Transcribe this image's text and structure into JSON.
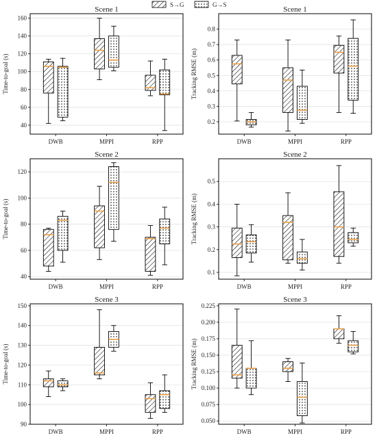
{
  "legend": {
    "entries": [
      {
        "label": "S→G",
        "pattern": "hatch"
      },
      {
        "label": "G→S",
        "pattern": "dots"
      }
    ]
  },
  "colors": {
    "median": "#e8a04a",
    "frame": "#000000",
    "grid": "#dddddd"
  },
  "chart_data": [
    {
      "type": "box",
      "title": "Scene 1",
      "ylabel": "Time-to-goal (s)",
      "categories": [
        "DWB",
        "MPPI",
        "RPP"
      ],
      "ylim": [
        30,
        165
      ],
      "yticks": [
        40,
        60,
        80,
        100,
        120,
        140,
        160
      ],
      "grid": true,
      "series": [
        {
          "pattern": "hatch",
          "boxes": [
            {
              "min": 42,
              "q1": 76,
              "median": 106,
              "q3": 111,
              "max": 114
            },
            {
              "min": 91,
              "q1": 103,
              "median": 124,
              "q3": 137,
              "max": 160
            },
            {
              "min": 73,
              "q1": 79,
              "median": 82,
              "q3": 96,
              "max": 112
            }
          ]
        },
        {
          "pattern": "dots",
          "boxes": [
            {
              "min": 45,
              "q1": 49,
              "median": 105,
              "q3": 106,
              "max": 115
            },
            {
              "min": 101,
              "q1": 105,
              "median": 113,
              "q3": 140,
              "max": 151
            },
            {
              "min": 34,
              "q1": 74,
              "median": 75,
              "q3": 102,
              "max": 114
            }
          ]
        }
      ]
    },
    {
      "type": "box",
      "title": "Scene 1",
      "ylabel": "Tracking RMSE (m)",
      "categories": [
        "DWB",
        "MPPI",
        "RPP"
      ],
      "ylim": [
        0.12,
        0.9
      ],
      "yticks": [
        0.2,
        0.3,
        0.4,
        0.5,
        0.6,
        0.7,
        0.8
      ],
      "grid": true,
      "series": [
        {
          "pattern": "hatch",
          "boxes": [
            {
              "min": 0.205,
              "q1": 0.445,
              "median": 0.575,
              "q3": 0.63,
              "max": 0.73
            },
            {
              "min": 0.14,
              "q1": 0.26,
              "median": 0.47,
              "q3": 0.55,
              "max": 0.73
            },
            {
              "min": 0.26,
              "q1": 0.515,
              "median": 0.65,
              "q3": 0.695,
              "max": 0.755
            }
          ]
        },
        {
          "pattern": "dots",
          "boxes": [
            {
              "min": 0.165,
              "q1": 0.18,
              "median": 0.2,
              "q3": 0.215,
              "max": 0.26
            },
            {
              "min": 0.19,
              "q1": 0.215,
              "median": 0.275,
              "q3": 0.43,
              "max": 0.535
            },
            {
              "min": 0.255,
              "q1": 0.34,
              "median": 0.56,
              "q3": 0.74,
              "max": 0.86
            }
          ]
        }
      ]
    },
    {
      "type": "box",
      "title": "Scene 2",
      "ylabel": "Time-to-goal (s)",
      "categories": [
        "DWB",
        "MPPI",
        "RPP"
      ],
      "ylim": [
        38,
        130
      ],
      "yticks": [
        40,
        60,
        80,
        100,
        120
      ],
      "grid": true,
      "series": [
        {
          "pattern": "hatch",
          "boxes": [
            {
              "min": 44,
              "q1": 48,
              "median": 72,
              "q3": 76,
              "max": 77
            },
            {
              "min": 53,
              "q1": 62,
              "median": 90,
              "q3": 94,
              "max": 109
            },
            {
              "min": 41,
              "q1": 44,
              "median": 69,
              "q3": 70,
              "max": 79
            }
          ]
        },
        {
          "pattern": "dots",
          "boxes": [
            {
              "min": 51,
              "q1": 60,
              "median": 83,
              "q3": 86,
              "max": 90
            },
            {
              "min": 67,
              "q1": 76,
              "median": 112,
              "q3": 124,
              "max": 127
            },
            {
              "min": 49,
              "q1": 65,
              "median": 77,
              "q3": 84,
              "max": 93
            }
          ]
        }
      ]
    },
    {
      "type": "box",
      "title": "Scene 2",
      "ylabel": "Tracking RMSE (m)",
      "categories": [
        "DWB",
        "MPPI",
        "RPP"
      ],
      "ylim": [
        0.07,
        0.6
      ],
      "yticks": [
        0.1,
        0.2,
        0.3,
        0.4,
        0.5
      ],
      "grid": true,
      "series": [
        {
          "pattern": "hatch",
          "boxes": [
            {
              "min": 0.085,
              "q1": 0.165,
              "median": 0.225,
              "q3": 0.295,
              "max": 0.4
            },
            {
              "min": 0.14,
              "q1": 0.155,
              "median": 0.32,
              "q3": 0.35,
              "max": 0.45
            },
            {
              "min": 0.14,
              "q1": 0.17,
              "median": 0.3,
              "q3": 0.455,
              "max": 0.57
            }
          ]
        },
        {
          "pattern": "dots",
          "boxes": [
            {
              "min": 0.145,
              "q1": 0.185,
              "median": 0.235,
              "q3": 0.265,
              "max": 0.31
            },
            {
              "min": 0.11,
              "q1": 0.14,
              "median": 0.16,
              "q3": 0.19,
              "max": 0.245
            },
            {
              "min": 0.215,
              "q1": 0.23,
              "median": 0.245,
              "q3": 0.275,
              "max": 0.295
            }
          ]
        }
      ]
    },
    {
      "type": "box",
      "title": "Scene 3",
      "ylabel": "Time-to-goal (s)",
      "categories": [
        "DWB",
        "MPPI",
        "RPP"
      ],
      "ylim": [
        90,
        151
      ],
      "yticks": [
        90,
        100,
        110,
        120,
        130,
        140,
        150
      ],
      "grid": true,
      "series": [
        {
          "pattern": "hatch",
          "boxes": [
            {
              "min": 104,
              "q1": 109,
              "median": 112,
              "q3": 113,
              "max": 117
            },
            {
              "min": 113,
              "q1": 115,
              "median": 116,
              "q3": 129,
              "max": 148
            },
            {
              "min": 93,
              "q1": 96,
              "median": 103,
              "q3": 105,
              "max": 111
            }
          ]
        },
        {
          "pattern": "dots",
          "boxes": [
            {
              "min": 107,
              "q1": 109,
              "median": 110,
              "q3": 112,
              "max": 113
            },
            {
              "min": 127,
              "q1": 129,
              "median": 133,
              "q3": 137,
              "max": 140
            },
            {
              "min": 96,
              "q1": 98,
              "median": 105,
              "q3": 107,
              "max": 115
            }
          ]
        }
      ]
    },
    {
      "type": "box",
      "title": "Scene 3",
      "ylabel": "Tracking RMSE (m)",
      "categories": [
        "DWB",
        "MPPI",
        "RPP"
      ],
      "ylim": [
        0.045,
        0.228
      ],
      "yticks": [
        0.05,
        0.075,
        0.1,
        0.125,
        0.15,
        0.175,
        0.2,
        0.225
      ],
      "ytick_labels": [
        "0.050",
        "0.075",
        "0.100",
        "0.125",
        "0.150",
        "0.175",
        "0.200",
        "0.225"
      ],
      "grid": true,
      "series": [
        {
          "pattern": "hatch",
          "boxes": [
            {
              "min": 0.1,
              "q1": 0.115,
              "median": 0.12,
              "q3": 0.165,
              "max": 0.22
            },
            {
              "min": 0.11,
              "q1": 0.125,
              "median": 0.13,
              "q3": 0.14,
              "max": 0.145
            },
            {
              "min": 0.168,
              "q1": 0.175,
              "median": 0.19,
              "q3": 0.19,
              "max": 0.21
            }
          ]
        },
        {
          "pattern": "dots",
          "boxes": [
            {
              "min": 0.09,
              "q1": 0.1,
              "median": 0.13,
              "q3": 0.13,
              "max": 0.172
            },
            {
              "min": 0.047,
              "q1": 0.058,
              "median": 0.086,
              "q3": 0.11,
              "max": 0.138
            },
            {
              "min": 0.152,
              "q1": 0.155,
              "median": 0.165,
              "q3": 0.172,
              "max": 0.186
            }
          ]
        }
      ]
    }
  ]
}
